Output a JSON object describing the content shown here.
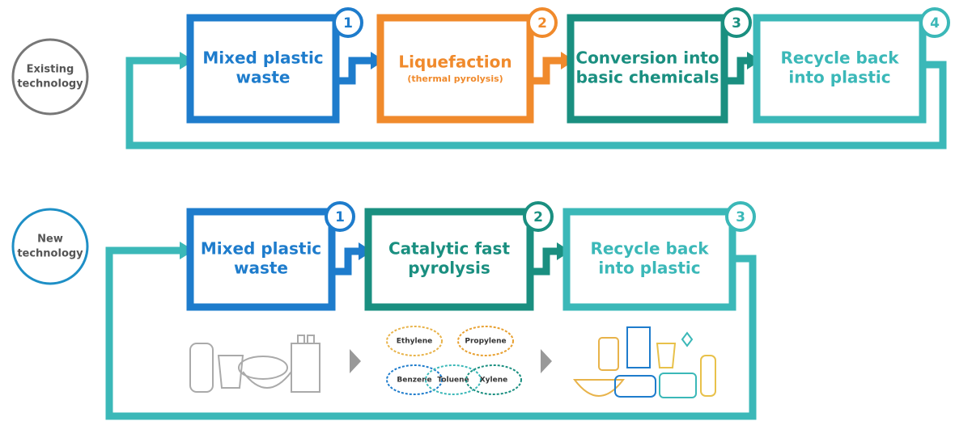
{
  "rows": [
    {
      "label": [
        "Existing",
        "technology"
      ],
      "label_color": "#777",
      "steps": [
        {
          "number": "1",
          "label": [
            "Mixed plastic",
            "waste"
          ],
          "color": "#1e7ccc"
        },
        {
          "number": "2",
          "label": [
            "Liquefaction"
          ],
          "sublabel": "(thermal pyrolysis)",
          "color": "#f08a2c"
        },
        {
          "number": "3",
          "label": [
            "Conversion into",
            "basic chemicals"
          ],
          "color": "#1a8f80"
        },
        {
          "number": "4",
          "label": [
            "Recycle back",
            "into plastic"
          ],
          "color": "#3bb8b8"
        }
      ]
    },
    {
      "label": [
        "New",
        "technology"
      ],
      "label_color": "#1e8fc6",
      "steps": [
        {
          "number": "1",
          "label": [
            "Mixed plastic",
            "waste"
          ],
          "color": "#1e7ccc"
        },
        {
          "number": "2",
          "label": [
            "Catalytic fast",
            "pyrolysis"
          ],
          "color": "#1a8f80"
        },
        {
          "number": "3",
          "label": [
            "Recycle back",
            "into plastic"
          ],
          "color": "#3bb8b8"
        }
      ]
    }
  ],
  "chemicals": [
    "Ethylene",
    "Propylene",
    "Benzene",
    "Toluene",
    "Xylene"
  ]
}
